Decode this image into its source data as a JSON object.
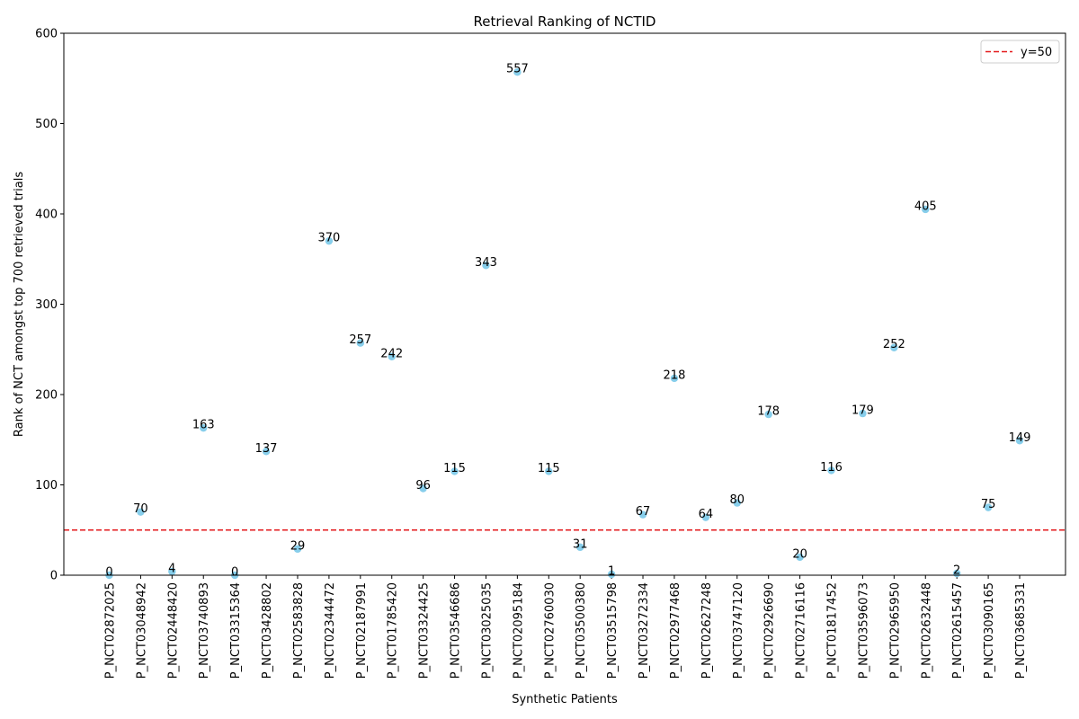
{
  "chart_data": {
    "type": "scatter",
    "title": "Retrieval Ranking of NCTID",
    "xlabel": "Synthetic Patients",
    "ylabel": "Rank of NCT amongst top 700 retrieved trials",
    "ylim": [
      0,
      600
    ],
    "yticks": [
      0,
      100,
      200,
      300,
      400,
      500,
      600
    ],
    "grid": false,
    "legend_position": "top-right",
    "point_color": "#87ceeb",
    "categories": [
      "P_NCT02872025",
      "P_NCT03048942",
      "P_NCT02448420",
      "P_NCT03740893",
      "P_NCT03315364",
      "P_NCT03428802",
      "P_NCT02583828",
      "P_NCT02344472",
      "P_NCT02187991",
      "P_NCT01785420",
      "P_NCT03324425",
      "P_NCT03546686",
      "P_NCT03025035",
      "P_NCT02095184",
      "P_NCT02760030",
      "P_NCT03500380",
      "P_NCT03515798",
      "P_NCT03272334",
      "P_NCT02977468",
      "P_NCT02627248",
      "P_NCT03747120",
      "P_NCT02926690",
      "P_NCT02716116",
      "P_NCT01817452",
      "P_NCT03596073",
      "P_NCT02965950",
      "P_NCT02632448",
      "P_NCT02615457",
      "P_NCT03090165",
      "P_NCT03685331"
    ],
    "values": [
      0,
      70,
      4,
      163,
      0,
      137,
      29,
      370,
      257,
      242,
      96,
      115,
      343,
      557,
      115,
      31,
      1,
      67,
      218,
      64,
      80,
      178,
      20,
      116,
      179,
      252,
      405,
      2,
      75,
      149
    ],
    "reference_line": {
      "y": 50,
      "label": "y=50",
      "color": "#e31a1c",
      "style": "dashed"
    }
  }
}
